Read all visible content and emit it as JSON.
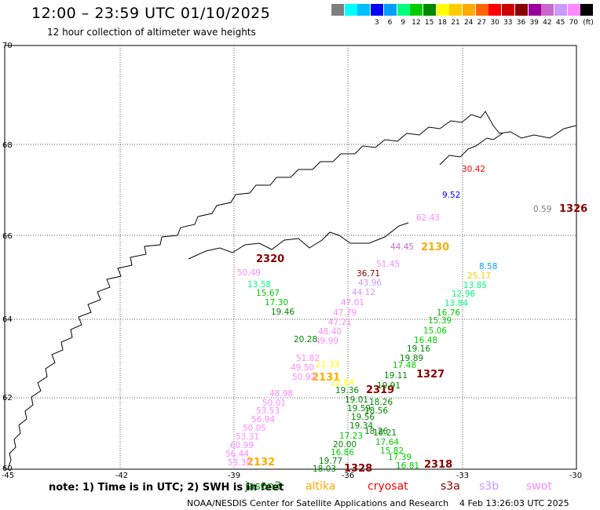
{
  "header": {
    "title": "12:00 – 23:59 UTC 01/10/2025",
    "subtitle": "12 hour collection of altimeter wave heights"
  },
  "color_scale": {
    "unit": "(ft)",
    "colors": [
      "#7f7f7f",
      "#00ffff",
      "#00bfff",
      "#0000ff",
      "#009fff",
      "#00ff7f",
      "#00cc00",
      "#008800",
      "#ffff00",
      "#ffcc00",
      "#ffaa00",
      "#ff6600",
      "#ff0000",
      "#cc0000",
      "#880000",
      "#990099",
      "#cc66cc",
      "#cc99ff",
      "#ff88ff",
      "#000000"
    ],
    "labels": [
      "3",
      "6",
      "9",
      "12",
      "15",
      "18",
      "21",
      "24",
      "27",
      "30",
      "33",
      "36",
      "39",
      "42",
      "45",
      "70"
    ]
  },
  "map": {
    "lat_labels": [
      "70",
      "68",
      "66",
      "64",
      "62",
      "60"
    ],
    "lon_labels": [
      "-45",
      "-42",
      "-39",
      "-36",
      "-33",
      "-30"
    ],
    "pass_labels": [
      {
        "text": "2320",
        "color": "#880000"
      },
      {
        "text": "2130",
        "color": "#ffaa00"
      },
      {
        "text": "2131",
        "color": "#ffaa00"
      },
      {
        "text": "2319",
        "color": "#880000"
      },
      {
        "text": "1327",
        "color": "#880000"
      },
      {
        "text": "2132",
        "color": "#ffaa00"
      },
      {
        "text": "1328",
        "color": "#880000"
      },
      {
        "text": "2318",
        "color": "#880000"
      },
      {
        "text": "1326",
        "color": "#880000"
      }
    ],
    "readings": [
      {
        "text": "30.42",
        "color": "#ff0000"
      },
      {
        "text": "9.52",
        "color": "#0000ff"
      },
      {
        "text": "62.43",
        "color": "#ff88ff"
      },
      {
        "text": "0.59",
        "color": "#7f7f7f"
      },
      {
        "text": "44.45",
        "color": "#cc66cc"
      },
      {
        "text": "51.45",
        "color": "#ff88ff"
      },
      {
        "text": "36.71",
        "color": "#880000"
      },
      {
        "text": "43.96",
        "color": "#cc99ff"
      },
      {
        "text": "44.12",
        "color": "#cc99ff"
      },
      {
        "text": "47.01",
        "color": "#ff88ff"
      },
      {
        "text": "47.79",
        "color": "#ff88ff"
      },
      {
        "text": "47.21",
        "color": "#ff88ff"
      },
      {
        "text": "48.40",
        "color": "#ff88ff"
      },
      {
        "text": "49.99",
        "color": "#ff88ff"
      },
      {
        "text": "51.82",
        "color": "#ff88ff"
      },
      {
        "text": "49.50",
        "color": "#ff88ff"
      },
      {
        "text": "50.92",
        "color": "#ff88ff"
      },
      {
        "text": "48.98",
        "color": "#ff88ff"
      },
      {
        "text": "50.01",
        "color": "#ff88ff"
      },
      {
        "text": "53.53",
        "color": "#ff88ff"
      },
      {
        "text": "56.94",
        "color": "#ff88ff"
      },
      {
        "text": "50.05",
        "color": "#ff88ff"
      },
      {
        "text": "53.31",
        "color": "#ff88ff"
      },
      {
        "text": "60.99",
        "color": "#ff88ff"
      },
      {
        "text": "56.44",
        "color": "#ff88ff"
      },
      {
        "text": "53.30",
        "color": "#ff88ff"
      },
      {
        "text": "50.49",
        "color": "#ff88ff"
      },
      {
        "text": "13.58",
        "color": "#00ff7f"
      },
      {
        "text": "15.67",
        "color": "#00cc00"
      },
      {
        "text": "17.30",
        "color": "#00cc00"
      },
      {
        "text": "19.46",
        "color": "#008800"
      },
      {
        "text": "20.28",
        "color": "#008800"
      },
      {
        "text": "21.33",
        "color": "#ffff00"
      },
      {
        "text": "22.84",
        "color": "#ffff00"
      },
      {
        "text": "19.36",
        "color": "#008800"
      },
      {
        "text": "19.01",
        "color": "#008800"
      },
      {
        "text": "19.59",
        "color": "#008800"
      },
      {
        "text": "19.56",
        "color": "#008800"
      },
      {
        "text": "19.34",
        "color": "#008800"
      },
      {
        "text": "18.26",
        "color": "#008800"
      },
      {
        "text": "17.23",
        "color": "#00cc00"
      },
      {
        "text": "20.00",
        "color": "#008800"
      },
      {
        "text": "16.86",
        "color": "#00cc00"
      },
      {
        "text": "19.77",
        "color": "#008800"
      },
      {
        "text": "18.03",
        "color": "#008800"
      },
      {
        "text": "8.58",
        "color": "#009fff"
      },
      {
        "text": "25.17",
        "color": "#ffcc00"
      },
      {
        "text": "12.96",
        "color": "#00ff7f"
      },
      {
        "text": "13.85",
        "color": "#00ff7f"
      },
      {
        "text": "13.84",
        "color": "#00ff7f"
      },
      {
        "text": "16.76",
        "color": "#00cc00"
      },
      {
        "text": "15.39",
        "color": "#00cc00"
      },
      {
        "text": "15.06",
        "color": "#00cc00"
      },
      {
        "text": "16.48",
        "color": "#00cc00"
      },
      {
        "text": "19.16",
        "color": "#008800"
      },
      {
        "text": "19.89",
        "color": "#008800"
      },
      {
        "text": "17.48",
        "color": "#00cc00"
      },
      {
        "text": "19.11",
        "color": "#008800"
      },
      {
        "text": "19.91",
        "color": "#008800"
      },
      {
        "text": "18.26",
        "color": "#008800"
      },
      {
        "text": "18.56",
        "color": "#008800"
      },
      {
        "text": "18.21",
        "color": "#008800"
      },
      {
        "text": "17.64",
        "color": "#00cc00"
      },
      {
        "text": "15.82",
        "color": "#00cc00"
      },
      {
        "text": "17.39",
        "color": "#00cc00"
      },
      {
        "text": "16.81",
        "color": "#00cc00"
      }
    ]
  },
  "footer": {
    "note": "note:  1) Time is in UTC;  2) SWH is in feet",
    "satellites": [
      {
        "name": "jason3",
        "color": "#008800"
      },
      {
        "name": "altika",
        "color": "#ffaa00"
      },
      {
        "name": "cryosat",
        "color": "#ff0000"
      },
      {
        "name": "s3a",
        "color": "#880000"
      },
      {
        "name": "s3b",
        "color": "#cc99ff"
      },
      {
        "name": "swot",
        "color": "#ff88ff"
      }
    ],
    "credit": "NOAA/NESDIS Center for Satellite Applications and Research",
    "timestamp": "4 Feb 13:26:03 UTC 2025"
  }
}
